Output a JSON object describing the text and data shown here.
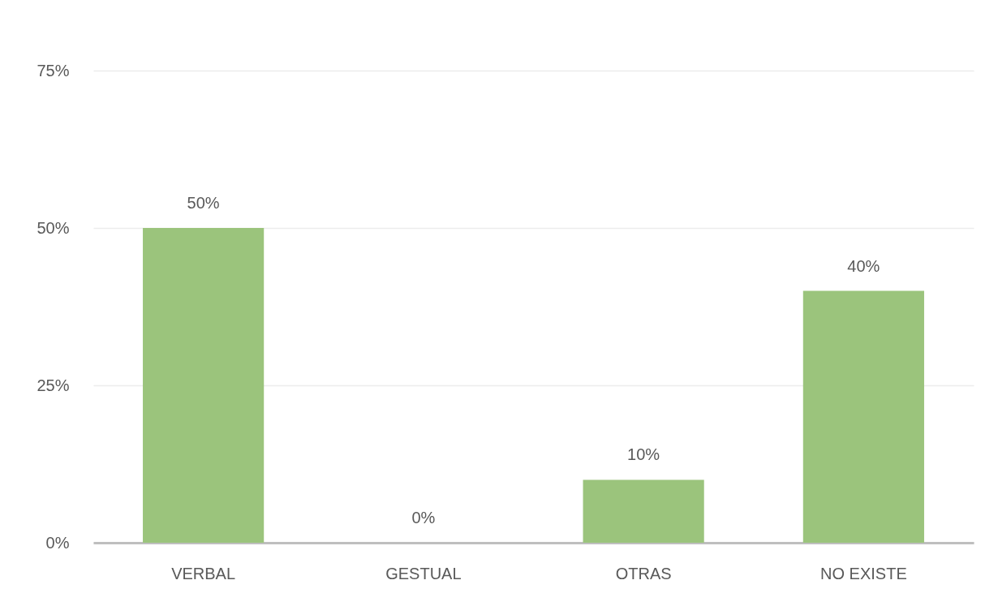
{
  "chart_data": {
    "type": "bar",
    "categories": [
      "VERBAL",
      "GESTUAL",
      "OTRAS",
      "NO EXISTE"
    ],
    "values": [
      50,
      0,
      10,
      40
    ],
    "color": "#9bc47c",
    "value_labels": [
      "50%",
      "0%",
      "10%",
      "40%"
    ],
    "ylim": [
      0,
      75
    ],
    "yticks": [
      {
        "value": 0,
        "label": "0%"
      },
      {
        "value": 25,
        "label": "25%"
      },
      {
        "value": 50,
        "label": "50%"
      },
      {
        "value": 75,
        "label": "75%"
      }
    ],
    "grid": "y"
  }
}
